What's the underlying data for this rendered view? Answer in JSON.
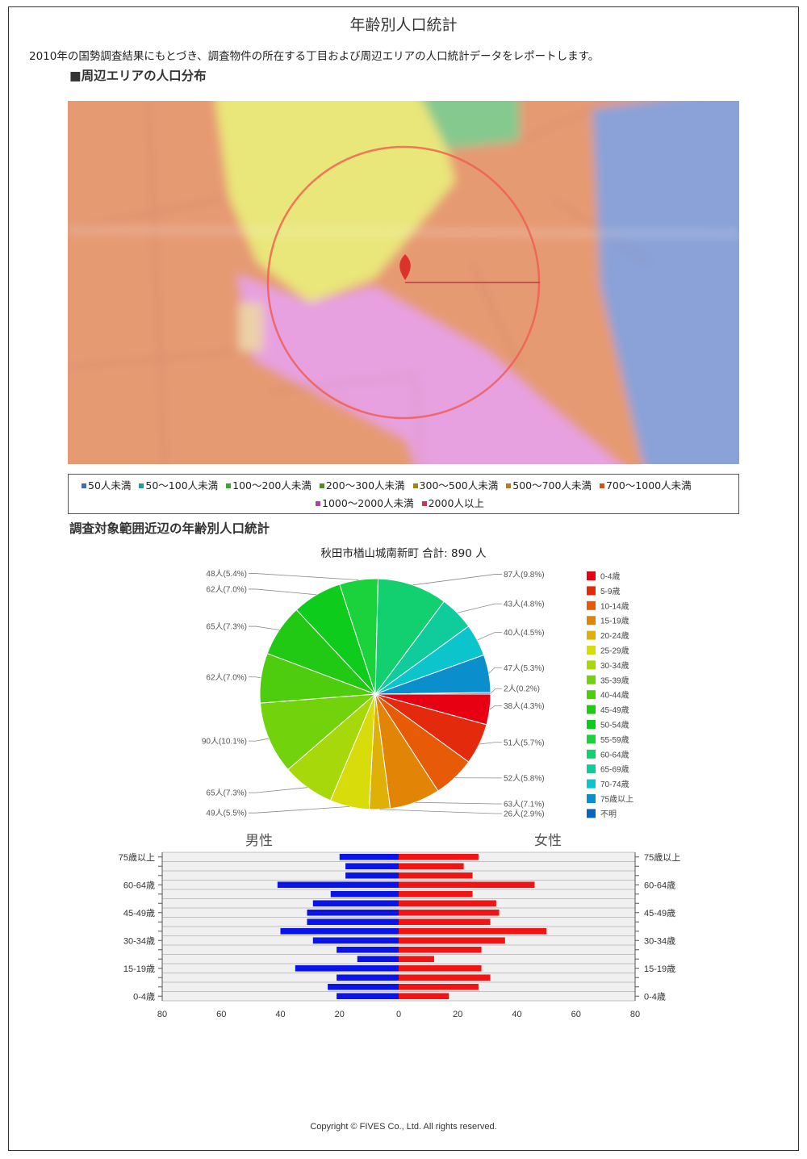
{
  "title": "年齢別人口統計",
  "intro": "2010年の国勢調査結果にもとづき、調査物件の所在する丁目および周辺エリアの人口統計データをレポートします。",
  "map_section": {
    "heading": "■周辺エリアの人口分布",
    "legend": [
      {
        "label": "50人未満",
        "color": "#4466bb"
      },
      {
        "label": "50〜100人未満",
        "color": "#22999a"
      },
      {
        "label": "100〜200人未満",
        "color": "#33aa33"
      },
      {
        "label": "200〜300人未満",
        "color": "#558822"
      },
      {
        "label": "300〜500人未満",
        "color": "#998811"
      },
      {
        "label": "500〜700人未満",
        "color": "#bb7722"
      },
      {
        "label": "700〜1000人未満",
        "color": "#cc5511"
      },
      {
        "label": "1000〜2000人未満",
        "color": "#aa44aa"
      },
      {
        "label": "2000人以上",
        "color": "#cc3355"
      }
    ]
  },
  "age_section": {
    "heading": "調査対象範囲近辺の年齢別人口統計",
    "subtitle": "秋田市楢山城南新町 合計: 890 人"
  },
  "chart_data": [
    {
      "type": "pie",
      "total": 890,
      "slices": [
        {
          "label": "0-4歳",
          "value": 38,
          "text": "38人(4.3%)",
          "color": "#e60012"
        },
        {
          "label": "5-9歳",
          "value": 51,
          "text": "51人(5.7%)",
          "color": "#e42a0c"
        },
        {
          "label": "10-14歳",
          "value": 52,
          "text": "52人(5.8%)",
          "color": "#e65a08"
        },
        {
          "label": "15-19歳",
          "value": 63,
          "text": "63人(7.1%)",
          "color": "#e28406"
        },
        {
          "label": "20-24歳",
          "value": 26,
          "text": "26人(2.9%)",
          "color": "#dfb008"
        },
        {
          "label": "25-29歳",
          "value": 49,
          "text": "49人(5.5%)",
          "color": "#d8dc0a"
        },
        {
          "label": "30-34歳",
          "value": 65,
          "text": "65人(7.3%)",
          "color": "#a6d80a"
        },
        {
          "label": "35-39歳",
          "value": 90,
          "text": "90人(10.1%)",
          "color": "#72d20c"
        },
        {
          "label": "40-44歳",
          "value": 62,
          "text": "62人(7.0%)",
          "color": "#4ecc0e"
        },
        {
          "label": "45-49歳",
          "value": 65,
          "text": "65人(7.3%)",
          "color": "#22c914"
        },
        {
          "label": "50-54歳",
          "value": 62,
          "text": "62人(7.0%)",
          "color": "#0ecc1c"
        },
        {
          "label": "55-59歳",
          "value": 48,
          "text": "48人(5.4%)",
          "color": "#1cd23c"
        },
        {
          "label": "60-64歳",
          "value": 87,
          "text": "87人(9.8%)",
          "color": "#12d070"
        },
        {
          "label": "65-69歳",
          "value": 43,
          "text": "43人(4.8%)",
          "color": "#10cc9c"
        },
        {
          "label": "70-74歳",
          "value": 40,
          "text": "40人(4.5%)",
          "color": "#0cc4cc"
        },
        {
          "label": "75歳以上",
          "value": 47,
          "text": "47人(5.3%)",
          "color": "#0a8fcc"
        },
        {
          "label": "不明",
          "value": 2,
          "text": "2人(0.2%)",
          "color": "#0a64bb"
        }
      ]
    },
    {
      "type": "bar",
      "orientation": "horizontal-population-pyramid",
      "left_title": "男性",
      "right_title": "女性",
      "categories": [
        "75歳以上",
        "70-74歳",
        "65-69歳",
        "60-64歳",
        "55-59歳",
        "50-54歳",
        "45-49歳",
        "40-44歳",
        "35-39歳",
        "30-34歳",
        "25-29歳",
        "20-24歳",
        "15-19歳",
        "10-14歳",
        "5-9歳",
        "0-4歳"
      ],
      "tick_labels": [
        "75歳以上",
        "60-64歳",
        "45-49歳",
        "30-34歳",
        "15-19歳",
        "0-4歳"
      ],
      "series": [
        {
          "name": "男性",
          "color": "#0a14e6",
          "values": [
            20,
            18,
            18,
            41,
            23,
            29,
            31,
            31,
            40,
            29,
            21,
            14,
            35,
            21,
            24,
            21
          ]
        },
        {
          "name": "女性",
          "color": "#f01414",
          "values": [
            27,
            22,
            25,
            46,
            25,
            33,
            34,
            31,
            50,
            36,
            28,
            12,
            28,
            31,
            27,
            17
          ]
        }
      ],
      "xlim": [
        -80,
        80
      ],
      "xticks": [
        "80",
        "60",
        "40",
        "20",
        "0",
        "20",
        "40",
        "60",
        "80"
      ],
      "colors": {
        "grid": "#b0b0b0",
        "plot_bg": "#f0f0f0",
        "axis": "#555555"
      }
    }
  ],
  "copyright": "Copyright © FIVES Co., Ltd. All rights reserved."
}
